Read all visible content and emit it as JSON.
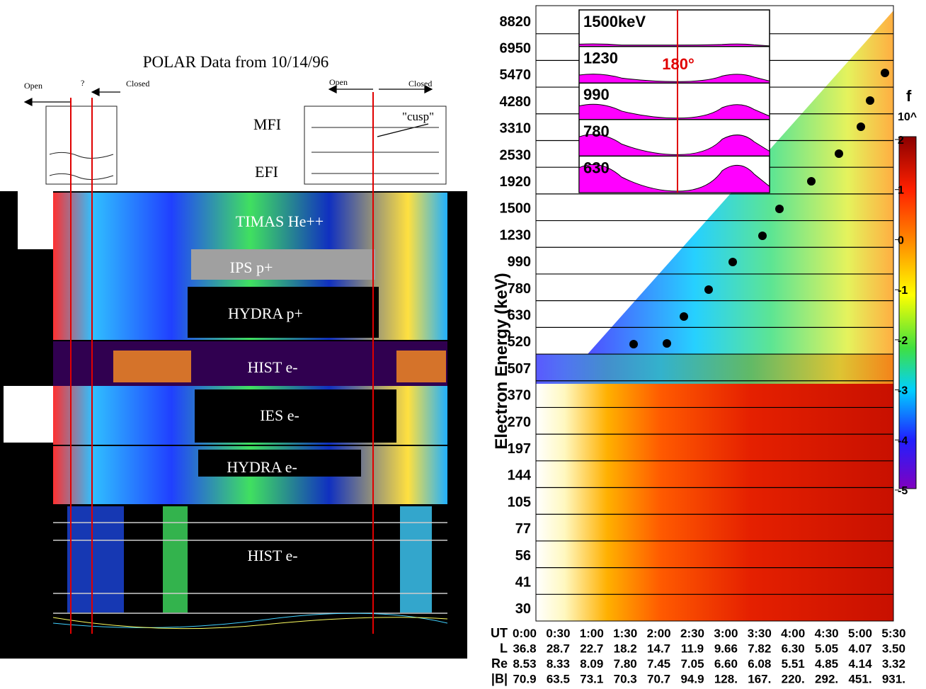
{
  "left_figure": {
    "title": "POLAR Data from 10/14/96",
    "boundary_labels": [
      "Open",
      "?",
      "Closed",
      "Open",
      "Closed"
    ],
    "cusp_label": "\"cusp\"",
    "instruments": [
      "MFI",
      "EFI"
    ],
    "panels": [
      "TIMAS He++",
      "IPS p+",
      "HYDRA p+",
      "HIST e-",
      "IES e-",
      "HYDRA e-",
      "HIST e-"
    ]
  },
  "right_figure": {
    "y_axis_label": "Electron Energy (keV)",
    "energy_labels": [
      "8820",
      "6950",
      "5470",
      "4280",
      "3310",
      "2530",
      "1920",
      "1500",
      "1230",
      "990",
      "780",
      "630",
      "520",
      "507",
      "370",
      "270",
      "197",
      "144",
      "105",
      "77",
      "56",
      "41",
      "30"
    ],
    "inset": {
      "labels": [
        "1500keV",
        "1230",
        "990",
        "780",
        "630"
      ],
      "angle_label": "180°"
    },
    "colorbar": {
      "title": "f",
      "unit": "10^",
      "ticks": [
        "2",
        "1",
        "0",
        "-1",
        "-2",
        "-3",
        "-4",
        "-5"
      ]
    },
    "table": {
      "rows": [
        {
          "header": "UT",
          "cells": [
            "0:00",
            "0:30",
            "1:00",
            "1:30",
            "2:00",
            "2:30",
            "3:00",
            "3:30",
            "4:00",
            "4:30",
            "5:00",
            "5:30"
          ]
        },
        {
          "header": "L",
          "cells": [
            "36.8",
            "28.7",
            "22.7",
            "18.2",
            "14.7",
            "11.9",
            "9.66",
            "7.82",
            "6.30",
            "5.05",
            "4.07",
            "3.50"
          ]
        },
        {
          "header": "Re",
          "cells": [
            "8.53",
            "8.33",
            "8.09",
            "7.80",
            "7.45",
            "7.05",
            "6.60",
            "6.08",
            "5.51",
            "4.85",
            "4.14",
            "3.32"
          ]
        },
        {
          "header": "|B|",
          "cells": [
            "70.9",
            "63.5",
            "73.1",
            "70.3",
            "70.7",
            "94.9",
            "128.",
            "167.",
            "220.",
            "292.",
            "451.",
            "931."
          ]
        }
      ]
    }
  }
}
